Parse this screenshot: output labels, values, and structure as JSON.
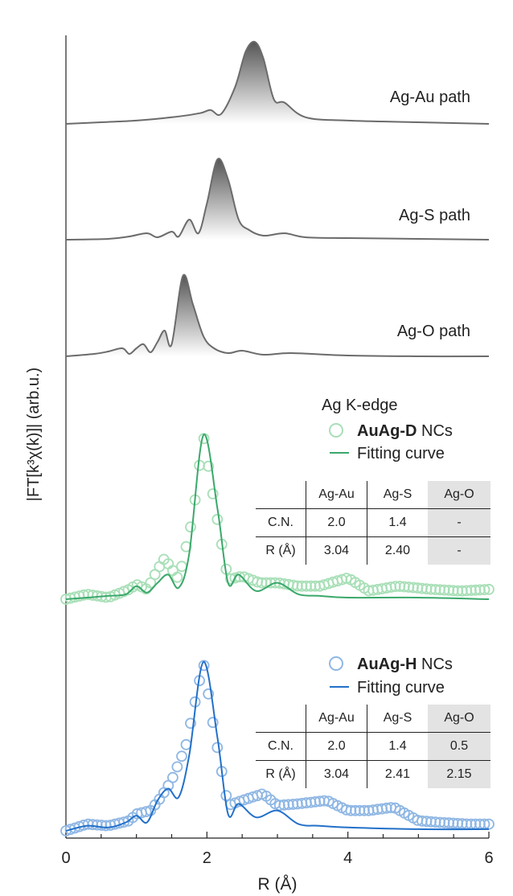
{
  "chart_data": {
    "type": "line",
    "title": "",
    "xlabel": "R (Å)",
    "ylabel": "|FT[k³χ(k)]| (arb.u.)",
    "xlim": [
      0,
      6
    ],
    "x_ticks": [
      "0",
      "2",
      "4",
      "6"
    ],
    "grid": false,
    "colors": {
      "path": "#6b6b6b",
      "green_fit": "#3aa86b",
      "green_data": "#a8dfb7",
      "blue_fit": "#2270c9",
      "blue_data": "#8fb7e4",
      "table_shade": "#e3e3e3"
    },
    "panels": [
      {
        "name": "Ag-Au path",
        "kind": "path",
        "x": [
          0,
          0.5,
          1.0,
          1.5,
          1.9,
          2.05,
          2.2,
          2.4,
          2.55,
          2.68,
          2.8,
          2.95,
          3.1,
          3.4,
          4.0,
          5.0,
          6.0
        ],
        "y": [
          0.0,
          0.02,
          0.04,
          0.08,
          0.13,
          0.17,
          0.12,
          0.45,
          0.88,
          1.0,
          0.8,
          0.3,
          0.26,
          0.08,
          0.04,
          0.02,
          0.0
        ]
      },
      {
        "name": "Ag-S path",
        "kind": "path",
        "x": [
          0,
          0.6,
          0.9,
          1.15,
          1.3,
          1.5,
          1.6,
          1.75,
          1.88,
          2.0,
          2.15,
          2.3,
          2.45,
          2.6,
          2.8,
          3.1,
          3.4,
          4.0,
          5.0,
          6.0
        ],
        "y": [
          0.0,
          0.01,
          0.04,
          0.08,
          0.03,
          0.1,
          0.04,
          0.25,
          0.08,
          0.45,
          1.0,
          0.75,
          0.25,
          0.12,
          0.05,
          0.08,
          0.03,
          0.02,
          0.01,
          0.0
        ]
      },
      {
        "name": "Ag-O path",
        "kind": "path",
        "x": [
          0,
          0.4,
          0.6,
          0.8,
          0.9,
          1.0,
          1.1,
          1.2,
          1.3,
          1.4,
          1.5,
          1.66,
          1.8,
          1.95,
          2.1,
          2.3,
          2.5,
          2.8,
          3.2,
          4.0,
          5.0,
          6.0
        ],
        "y": [
          0.0,
          0.03,
          0.06,
          0.1,
          0.03,
          0.1,
          0.15,
          0.05,
          0.18,
          0.32,
          0.15,
          1.0,
          0.65,
          0.25,
          0.1,
          0.04,
          0.07,
          0.02,
          0.04,
          0.01,
          0.0,
          0.0
        ]
      },
      {
        "name": "AuAg-D NCs",
        "kind": "fit",
        "legend_header": "Ag K-edge",
        "legend_bold": "AuAg-D",
        "legend_suffix": " NCs",
        "fit_label": "Fitting curve",
        "fit_x": [
          0,
          0.3,
          0.6,
          0.85,
          1.0,
          1.15,
          1.3,
          1.45,
          1.6,
          1.75,
          1.95,
          2.15,
          2.3,
          2.45,
          2.7,
          3.0,
          3.3,
          3.6,
          4.0,
          5.0,
          6.0
        ],
        "fit_y": [
          0.0,
          0.01,
          0.02,
          0.03,
          0.08,
          0.04,
          0.1,
          0.15,
          0.07,
          0.28,
          1.0,
          0.55,
          0.1,
          0.15,
          0.05,
          0.1,
          0.03,
          0.02,
          0.01,
          0.01,
          0.0
        ],
        "data_x": [
          0,
          0.3,
          0.6,
          0.9,
          1.0,
          1.15,
          1.3,
          1.4,
          1.6,
          1.8,
          1.95,
          2.1,
          2.3,
          2.5,
          2.75,
          3.0,
          3.3,
          3.6,
          4.0,
          4.3,
          4.7,
          5.2,
          5.6,
          6.0
        ],
        "data_y": [
          0.0,
          0.03,
          0.01,
          0.06,
          0.09,
          0.06,
          0.18,
          0.25,
          0.12,
          0.5,
          1.0,
          0.6,
          0.12,
          0.14,
          0.1,
          0.1,
          0.08,
          0.08,
          0.13,
          0.05,
          0.08,
          0.06,
          0.05,
          0.06
        ],
        "table": {
          "columns": [
            "Ag-Au",
            "Ag-S",
            "Ag-O"
          ],
          "rows": [
            {
              "label": "C.N.",
              "values": [
                "2.0",
                "1.4",
                "-"
              ]
            },
            {
              "label": "R (Å)",
              "values": [
                "3.04",
                "2.40",
                "-"
              ]
            }
          ]
        }
      },
      {
        "name": "AuAg-H NCs",
        "kind": "fit",
        "legend_header": "",
        "legend_bold": "AuAg-H",
        "legend_suffix": " NCs",
        "fit_label": "Fitting curve",
        "fit_x": [
          0,
          0.3,
          0.6,
          0.85,
          1.0,
          1.15,
          1.3,
          1.45,
          1.6,
          1.75,
          1.95,
          2.15,
          2.3,
          2.45,
          2.7,
          3.0,
          3.3,
          3.6,
          4.0,
          5.0,
          6.0
        ],
        "fit_y": [
          0.0,
          0.03,
          0.02,
          0.05,
          0.09,
          0.05,
          0.18,
          0.25,
          0.2,
          0.45,
          1.0,
          0.55,
          0.1,
          0.16,
          0.08,
          0.12,
          0.04,
          0.03,
          0.02,
          0.01,
          0.01
        ],
        "data_x": [
          0,
          0.3,
          0.6,
          0.9,
          1.0,
          1.2,
          1.35,
          1.5,
          1.7,
          1.95,
          2.1,
          2.3,
          2.5,
          2.8,
          3.0,
          3.3,
          3.7,
          4.0,
          4.3,
          4.65,
          5.0,
          5.3,
          5.7,
          6.0
        ],
        "data_y": [
          0.0,
          0.04,
          0.03,
          0.06,
          0.1,
          0.12,
          0.2,
          0.3,
          0.5,
          1.0,
          0.6,
          0.15,
          0.18,
          0.22,
          0.15,
          0.16,
          0.18,
          0.12,
          0.12,
          0.14,
          0.06,
          0.05,
          0.04,
          0.04
        ],
        "table": {
          "columns": [
            "Ag-Au",
            "Ag-S",
            "Ag-O"
          ],
          "rows": [
            {
              "label": "C.N.",
              "values": [
                "2.0",
                "1.4",
                "0.5"
              ]
            },
            {
              "label": "R (Å)",
              "values": [
                "3.04",
                "2.41",
                "2.15"
              ]
            }
          ]
        }
      }
    ]
  }
}
